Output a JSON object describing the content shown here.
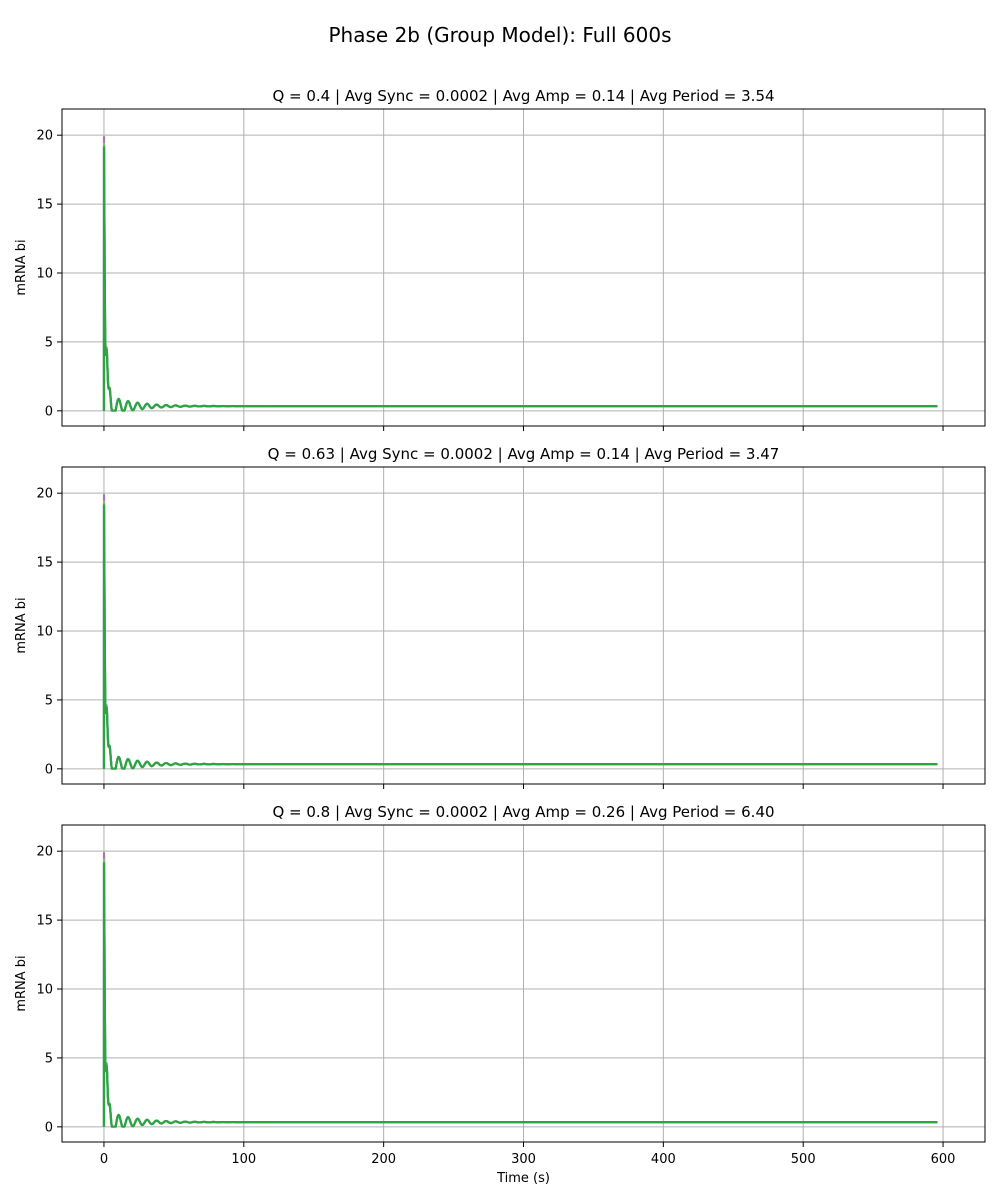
{
  "figure": {
    "suptitle": "Phase 2b (Group Model): Full 600s"
  },
  "chart_data": [
    {
      "type": "line",
      "title": "Q = 0.4 | Avg Sync = 0.0002 | Avg Amp = 0.14 | Avg Period = 3.54",
      "xlabel": "",
      "ylabel": "mRNA bi",
      "xlim": [
        -30,
        630
      ],
      "ylim": [
        -1.1,
        21.9
      ],
      "xticks": [
        0,
        100,
        200,
        300,
        400,
        500,
        600
      ],
      "xticklabels_visible": false,
      "yticks": [
        0,
        5,
        10,
        15,
        20
      ],
      "grid": true,
      "series": [
        {
          "color": "#9467bd",
          "peak": 20.7,
          "period": 6.8,
          "baseline": 0.34
        },
        {
          "color": "#bcbd22",
          "peak": 20.2,
          "period": 6.8,
          "baseline": 0.34
        },
        {
          "color": "#17becf",
          "peak": 20.0,
          "period": 6.8,
          "baseline": 0.34
        },
        {
          "color": "#2ca02c",
          "peak": 19.9,
          "period": 6.8,
          "baseline": 0.34
        }
      ]
    },
    {
      "type": "line",
      "title": "Q = 0.63 | Avg Sync = 0.0002 | Avg Amp = 0.14 | Avg Period = 3.47",
      "xlabel": "",
      "ylabel": "mRNA bi",
      "xlim": [
        -30,
        630
      ],
      "ylim": [
        -1.1,
        21.9
      ],
      "xticks": [
        0,
        100,
        200,
        300,
        400,
        500,
        600
      ],
      "xticklabels_visible": false,
      "yticks": [
        0,
        5,
        10,
        15,
        20
      ],
      "grid": true,
      "series": [
        {
          "color": "#9467bd",
          "peak": 20.7,
          "period": 6.8,
          "baseline": 0.34
        },
        {
          "color": "#bcbd22",
          "peak": 20.2,
          "period": 6.8,
          "baseline": 0.34
        },
        {
          "color": "#17becf",
          "peak": 20.0,
          "period": 6.8,
          "baseline": 0.34
        },
        {
          "color": "#2ca02c",
          "peak": 19.9,
          "period": 6.8,
          "baseline": 0.34
        }
      ]
    },
    {
      "type": "line",
      "title": "Q = 0.8 | Avg Sync = 0.0002 | Avg Amp = 0.26 | Avg Period = 6.40",
      "xlabel": "Time (s)",
      "ylabel": "mRNA bi",
      "xlim": [
        -30,
        630
      ],
      "ylim": [
        -1.1,
        21.9
      ],
      "xticks": [
        0,
        100,
        200,
        300,
        400,
        500,
        600
      ],
      "xticklabels_visible": true,
      "yticks": [
        0,
        5,
        10,
        15,
        20
      ],
      "grid": true,
      "series": [
        {
          "color": "#9467bd",
          "peak": 20.7,
          "period": 6.8,
          "baseline": 0.34
        },
        {
          "color": "#bcbd22",
          "peak": 20.2,
          "period": 6.8,
          "baseline": 0.34
        },
        {
          "color": "#17becf",
          "peak": 20.0,
          "period": 6.8,
          "baseline": 0.34
        },
        {
          "color": "#2ca02c",
          "peak": 19.9,
          "period": 6.8,
          "baseline": 0.34
        }
      ]
    }
  ]
}
